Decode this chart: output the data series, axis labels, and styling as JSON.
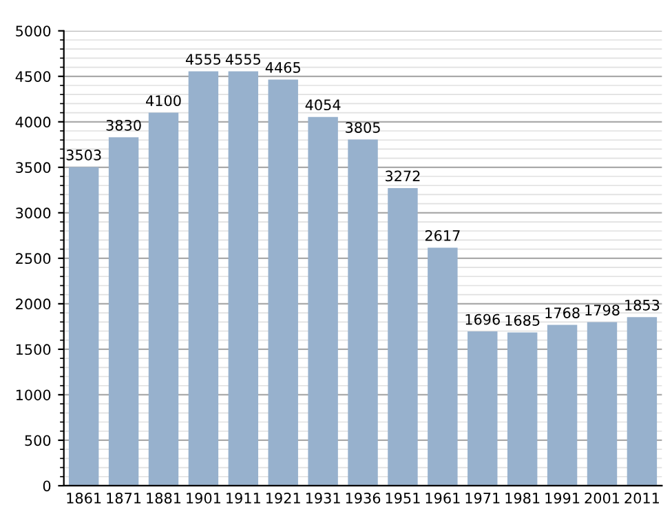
{
  "chart_data": {
    "type": "bar",
    "categories": [
      "1861",
      "1871",
      "1881",
      "1901",
      "1911",
      "1921",
      "1931",
      "1936",
      "1951",
      "1961",
      "1971",
      "1981",
      "1991",
      "2001",
      "2011"
    ],
    "values": [
      3503,
      3830,
      4100,
      4555,
      4555,
      4465,
      4054,
      3805,
      3272,
      2617,
      1696,
      1685,
      1768,
      1798,
      1853
    ],
    "color": "#97b1cd",
    "ylim": [
      0,
      5000
    ],
    "yticks": [
      0,
      500,
      1000,
      1500,
      2000,
      2500,
      3000,
      3500,
      4000,
      4500,
      5000
    ],
    "grid": "y",
    "data_labels": true
  }
}
